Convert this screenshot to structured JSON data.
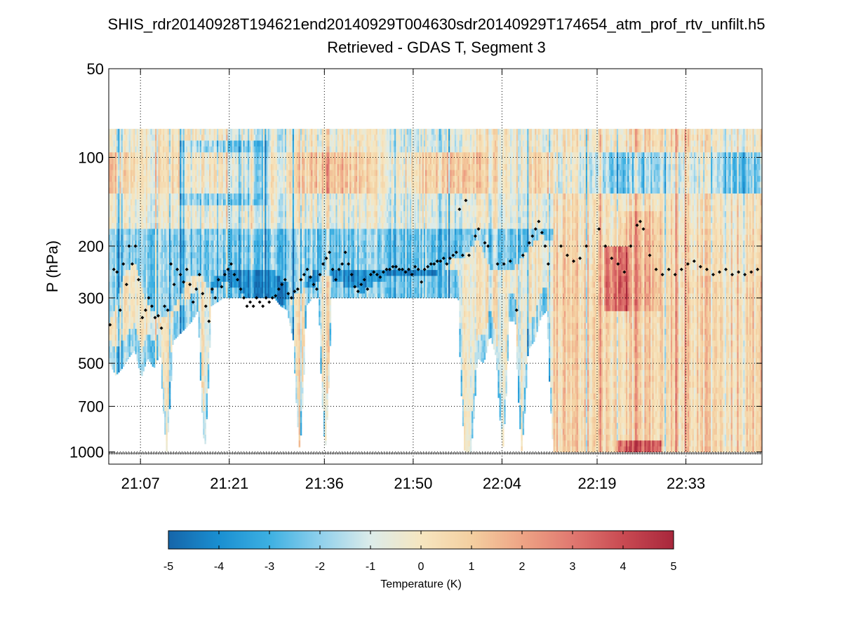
{
  "title_line1": "SHIS_rdr20140928T194621end20140929T004630sdr20140929T174654_atm_prof_rtv_unfilt.h5",
  "title_line2": "Retrieved - GDAS T, Segment 3",
  "chart_data": {
    "type": "heatmap",
    "ylabel": "P (hPa)",
    "yscale": "log",
    "ylim": [
      50,
      1100
    ],
    "y_reversed": true,
    "y_ticks": [
      50,
      100,
      200,
      300,
      500,
      700,
      1000
    ],
    "x_tick_labels": [
      "21:07",
      "21:21",
      "21:36",
      "21:50",
      "22:04",
      "22:19",
      "22:33"
    ],
    "x_ticks_minutes": [
      427,
      441,
      456,
      470,
      484,
      499,
      513
    ],
    "xlim_minutes": [
      422,
      525
    ],
    "grid": true,
    "colorbar": {
      "label": "Temperature (K)",
      "range": [
        -5,
        5
      ],
      "tick_labels": [
        "-5",
        "-4",
        "-3",
        "-2",
        "-1",
        "0",
        "1",
        "2",
        "3",
        "4",
        "5"
      ],
      "colors": [
        "#1565a9",
        "#1a8fd1",
        "#3db0e2",
        "#8fd0ec",
        "#dcecea",
        "#f6e6c0",
        "#f4cfa0",
        "#eea485",
        "#e07870",
        "#c94a52",
        "#a8273c"
      ]
    },
    "field_top_pressure": 80,
    "tropopause_pressure_min_hPa": [
      [
        422,
        360
      ],
      [
        424,
        250
      ],
      [
        426,
        220
      ],
      [
        428,
        310
      ],
      [
        430,
        350
      ],
      [
        432,
        320
      ],
      [
        434,
        260
      ],
      [
        436,
        240
      ],
      [
        438,
        280
      ],
      [
        440,
        260
      ],
      [
        442,
        270
      ],
      [
        444,
        300
      ],
      [
        446,
        310
      ],
      [
        448,
        320
      ],
      [
        450,
        300
      ],
      [
        452,
        280
      ],
      [
        454,
        270
      ],
      [
        456,
        240
      ],
      [
        458,
        260
      ],
      [
        460,
        270
      ],
      [
        462,
        280
      ],
      [
        464,
        260
      ],
      [
        466,
        250
      ],
      [
        468,
        250
      ],
      [
        470,
        245
      ],
      [
        472,
        250
      ],
      [
        474,
        240
      ],
      [
        476,
        220
      ],
      [
        478,
        210
      ],
      [
        480,
        185
      ],
      [
        482,
        230
      ],
      [
        484,
        240
      ],
      [
        486,
        230
      ],
      [
        488,
        200
      ],
      [
        490,
        180
      ],
      [
        492,
        190
      ],
      [
        494,
        200
      ],
      [
        496,
        220
      ],
      [
        498,
        225
      ],
      [
        500,
        230
      ],
      [
        502,
        240
      ],
      [
        504,
        250
      ],
      [
        506,
        215
      ],
      [
        508,
        230
      ],
      [
        510,
        250
      ],
      [
        512,
        260
      ],
      [
        514,
        240
      ],
      [
        516,
        245
      ],
      [
        518,
        260
      ],
      [
        520,
        250
      ],
      [
        522,
        250
      ],
      [
        524,
        255
      ]
    ],
    "tropopause_points": [
      [
        422.2,
        370
      ],
      [
        422.8,
        240
      ],
      [
        423.3,
        245
      ],
      [
        423.8,
        330
      ],
      [
        424.3,
        230
      ],
      [
        424.8,
        270
      ],
      [
        425.2,
        200
      ],
      [
        425.7,
        230
      ],
      [
        426.2,
        200
      ],
      [
        426.7,
        260
      ],
      [
        427.3,
        350
      ],
      [
        427.8,
        330
      ],
      [
        428.3,
        300
      ],
      [
        428.8,
        320
      ],
      [
        429.3,
        350
      ],
      [
        429.8,
        345
      ],
      [
        430.3,
        380
      ],
      [
        430.8,
        320
      ],
      [
        431.3,
        330
      ],
      [
        431.8,
        230
      ],
      [
        432.3,
        270
      ],
      [
        432.8,
        240
      ],
      [
        433.3,
        250
      ],
      [
        433.8,
        265
      ],
      [
        434.3,
        240
      ],
      [
        434.8,
        270
      ],
      [
        435.3,
        310
      ],
      [
        435.8,
        280
      ],
      [
        436.3,
        250
      ],
      [
        436.8,
        290
      ],
      [
        437.3,
        320
      ],
      [
        437.8,
        360
      ],
      [
        438.3,
        280
      ],
      [
        438.8,
        300
      ],
      [
        439.3,
        260
      ],
      [
        439.8,
        275
      ],
      [
        440.3,
        250
      ],
      [
        440.8,
        240
      ],
      [
        441.3,
        230
      ],
      [
        441.8,
        250
      ],
      [
        442.3,
        260
      ],
      [
        442.8,
        280
      ],
      [
        443.3,
        300
      ],
      [
        443.8,
        320
      ],
      [
        444.3,
        310
      ],
      [
        444.8,
        320
      ],
      [
        445.3,
        300
      ],
      [
        445.8,
        310
      ],
      [
        446.3,
        320
      ],
      [
        446.8,
        300
      ],
      [
        447.3,
        310
      ],
      [
        447.8,
        300
      ],
      [
        448.3,
        295
      ],
      [
        448.8,
        280
      ],
      [
        449.3,
        270
      ],
      [
        449.8,
        260
      ],
      [
        450.3,
        290
      ],
      [
        450.8,
        300
      ],
      [
        451.3,
        285
      ],
      [
        451.8,
        280
      ],
      [
        452.3,
        260
      ],
      [
        452.8,
        250
      ],
      [
        453.3,
        240
      ],
      [
        453.8,
        255
      ],
      [
        454.3,
        270
      ],
      [
        454.8,
        280
      ],
      [
        455.3,
        250
      ],
      [
        455.8,
        230
      ],
      [
        456.3,
        220
      ],
      [
        456.8,
        210
      ],
      [
        457.3,
        240
      ],
      [
        457.8,
        260
      ],
      [
        458.3,
        240
      ],
      [
        458.8,
        230
      ],
      [
        459.3,
        210
      ],
      [
        459.8,
        230
      ],
      [
        460.3,
        250
      ],
      [
        460.8,
        275
      ],
      [
        461.3,
        285
      ],
      [
        461.8,
        270
      ],
      [
        462.3,
        260
      ],
      [
        462.8,
        280
      ],
      [
        463.3,
        250
      ],
      [
        463.8,
        245
      ],
      [
        464.3,
        250
      ],
      [
        464.8,
        255
      ],
      [
        465.3,
        245
      ],
      [
        465.8,
        240
      ],
      [
        466.3,
        240
      ],
      [
        466.8,
        235
      ],
      [
        467.3,
        235
      ],
      [
        467.8,
        240
      ],
      [
        468.3,
        240
      ],
      [
        468.8,
        245
      ],
      [
        469.3,
        240
      ],
      [
        469.8,
        250
      ],
      [
        470.3,
        235
      ],
      [
        470.8,
        240
      ],
      [
        471.3,
        265
      ],
      [
        471.8,
        240
      ],
      [
        472.3,
        235
      ],
      [
        472.8,
        230
      ],
      [
        473.3,
        230
      ],
      [
        473.8,
        225
      ],
      [
        474.3,
        225
      ],
      [
        474.8,
        220
      ],
      [
        475.3,
        230
      ],
      [
        475.8,
        220
      ],
      [
        476.3,
        215
      ],
      [
        476.8,
        210
      ],
      [
        477.3,
        150
      ],
      [
        477.8,
        215
      ],
      [
        478.3,
        140
      ],
      [
        478.8,
        215
      ],
      [
        479.8,
        185
      ],
      [
        480.3,
        175
      ],
      [
        481.3,
        195
      ],
      [
        481.8,
        200
      ],
      [
        483.3,
        230
      ],
      [
        484.3,
        230
      ],
      [
        485.3,
        225
      ],
      [
        486.3,
        330
      ],
      [
        487.3,
        215
      ],
      [
        488.3,
        195
      ],
      [
        488.8,
        185
      ],
      [
        489.3,
        175
      ],
      [
        489.8,
        165
      ],
      [
        490.3,
        180
      ],
      [
        490.8,
        200
      ],
      [
        491.3,
        230
      ],
      [
        493.3,
        200
      ],
      [
        494.3,
        215
      ],
      [
        495.3,
        225
      ],
      [
        496.3,
        220
      ],
      [
        497.3,
        200
      ],
      [
        499.3,
        175
      ],
      [
        500.3,
        200
      ],
      [
        501.3,
        220
      ],
      [
        502.3,
        230
      ],
      [
        503.3,
        245
      ],
      [
        504.3,
        200
      ],
      [
        505.3,
        170
      ],
      [
        505.8,
        165
      ],
      [
        506.3,
        175
      ],
      [
        507.3,
        215
      ],
      [
        508.3,
        240
      ],
      [
        509.3,
        250
      ],
      [
        510.3,
        240
      ],
      [
        511.3,
        250
      ],
      [
        512.3,
        240
      ],
      [
        513.3,
        230
      ],
      [
        514.3,
        225
      ],
      [
        515.3,
        235
      ],
      [
        516.3,
        240
      ],
      [
        517.3,
        250
      ],
      [
        518.3,
        245
      ],
      [
        519.3,
        240
      ],
      [
        520.3,
        250
      ],
      [
        521.3,
        245
      ],
      [
        522.3,
        250
      ],
      [
        523.3,
        245
      ],
      [
        524.3,
        240
      ]
    ],
    "surface_pressure": 1000,
    "field_bottom_pressure_by_time": [
      [
        422,
        500
      ],
      [
        423,
        550
      ],
      [
        424,
        520
      ],
      [
        425,
        480
      ],
      [
        426,
        450
      ],
      [
        427,
        560
      ],
      [
        428,
        480
      ],
      [
        429,
        520
      ],
      [
        430,
        460
      ],
      [
        431,
        1000
      ],
      [
        432,
        420
      ],
      [
        433,
        400
      ],
      [
        434,
        380
      ],
      [
        435,
        360
      ],
      [
        436,
        330
      ],
      [
        437,
        1000
      ],
      [
        438,
        320
      ],
      [
        439,
        310
      ],
      [
        440,
        300
      ],
      [
        441,
        300
      ],
      [
        442,
        300
      ],
      [
        443,
        300
      ],
      [
        444,
        300
      ],
      [
        445,
        300
      ],
      [
        446,
        300
      ],
      [
        447,
        300
      ],
      [
        448,
        300
      ],
      [
        449,
        320
      ],
      [
        450,
        330
      ],
      [
        451,
        420
      ],
      [
        452,
        1000
      ],
      [
        453,
        320
      ],
      [
        454,
        300
      ],
      [
        455,
        300
      ],
      [
        456,
        1000
      ],
      [
        457,
        300
      ],
      [
        458,
        300
      ],
      [
        459,
        300
      ],
      [
        460,
        300
      ],
      [
        461,
        300
      ],
      [
        462,
        300
      ],
      [
        463,
        300
      ],
      [
        464,
        300
      ],
      [
        465,
        300
      ],
      [
        466,
        300
      ],
      [
        467,
        300
      ],
      [
        468,
        300
      ],
      [
        469,
        300
      ],
      [
        470,
        300
      ],
      [
        471,
        300
      ],
      [
        472,
        300
      ],
      [
        473,
        300
      ],
      [
        474,
        300
      ],
      [
        475,
        300
      ],
      [
        476,
        300
      ],
      [
        477,
        300
      ],
      [
        478,
        1000
      ],
      [
        479,
        1000
      ],
      [
        480,
        480
      ],
      [
        481,
        500
      ],
      [
        482,
        400
      ],
      [
        483,
        480
      ],
      [
        484,
        1000
      ],
      [
        485,
        360
      ],
      [
        486,
        360
      ],
      [
        487,
        1000
      ],
      [
        488,
        450
      ],
      [
        489,
        420
      ],
      [
        490,
        350
      ],
      [
        491,
        330
      ],
      [
        492,
        1000
      ],
      [
        493,
        1000
      ],
      [
        494,
        1000
      ],
      [
        495,
        1000
      ],
      [
        496,
        1000
      ],
      [
        497,
        1000
      ],
      [
        498,
        1000
      ],
      [
        499,
        1000
      ],
      [
        500,
        1000
      ],
      [
        501,
        1000
      ],
      [
        502,
        1000
      ],
      [
        503,
        1000
      ],
      [
        504,
        1000
      ],
      [
        505,
        1000
      ],
      [
        506,
        1000
      ],
      [
        507,
        1000
      ],
      [
        508,
        1000
      ],
      [
        509,
        1000
      ],
      [
        510,
        1000
      ],
      [
        511,
        1000
      ],
      [
        512,
        1000
      ],
      [
        513,
        1000
      ],
      [
        514,
        1000
      ],
      [
        515,
        1000
      ],
      [
        516,
        1000
      ],
      [
        517,
        1000
      ],
      [
        518,
        1000
      ],
      [
        519,
        1000
      ],
      [
        520,
        1000
      ],
      [
        521,
        1000
      ],
      [
        522,
        1000
      ],
      [
        523,
        1000
      ],
      [
        524,
        1000
      ],
      [
        525,
        1000
      ]
    ]
  }
}
